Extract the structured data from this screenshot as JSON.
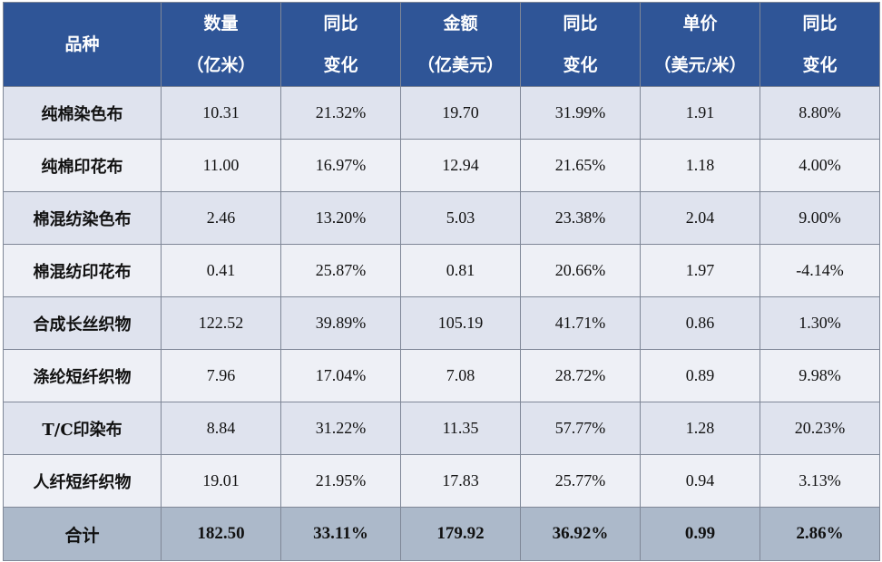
{
  "table": {
    "headers": [
      {
        "line1": "品种",
        "line2": ""
      },
      {
        "line1": "数量",
        "line2": "（亿米）"
      },
      {
        "line1": "同比",
        "line2": "变化"
      },
      {
        "line1": "金额",
        "line2": "（亿美元）"
      },
      {
        "line1": "同比",
        "line2": "变化"
      },
      {
        "line1": "单价",
        "line2": "（美元/米）"
      },
      {
        "line1": "同比",
        "line2": "变化"
      }
    ],
    "rows": [
      [
        "纯棉染色布",
        "10.31",
        "21.32%",
        "19.70",
        "31.99%",
        "1.91",
        "8.80%"
      ],
      [
        "纯棉印花布",
        "11.00",
        "16.97%",
        "12.94",
        "21.65%",
        "1.18",
        "4.00%"
      ],
      [
        "棉混纺染色布",
        "2.46",
        "13.20%",
        "5.03",
        "23.38%",
        "2.04",
        "9.00%"
      ],
      [
        "棉混纺印花布",
        "0.41",
        "25.87%",
        "0.81",
        "20.66%",
        "1.97",
        "-4.14%"
      ],
      [
        "合成长丝织物",
        "122.52",
        "39.89%",
        "105.19",
        "41.71%",
        "0.86",
        "1.30%"
      ],
      [
        "涤纶短纤织物",
        "7.96",
        "17.04%",
        "7.08",
        "28.72%",
        "0.89",
        "9.98%"
      ],
      [
        "T/C印染布",
        "8.84",
        "31.22%",
        "11.35",
        "57.77%",
        "1.28",
        "20.23%"
      ],
      [
        "人纤短纤织物",
        "19.01",
        "21.95%",
        "17.83",
        "25.77%",
        "0.94",
        "3.13%"
      ]
    ],
    "total": [
      "合计",
      "182.50",
      "33.11%",
      "179.92",
      "36.92%",
      "0.99",
      "2.86%"
    ]
  },
  "colors": {
    "header_bg": "#2f5597",
    "row_odd_bg": "#dfe3ee",
    "row_even_bg": "#eef0f6",
    "total_bg": "#acb9ca"
  }
}
